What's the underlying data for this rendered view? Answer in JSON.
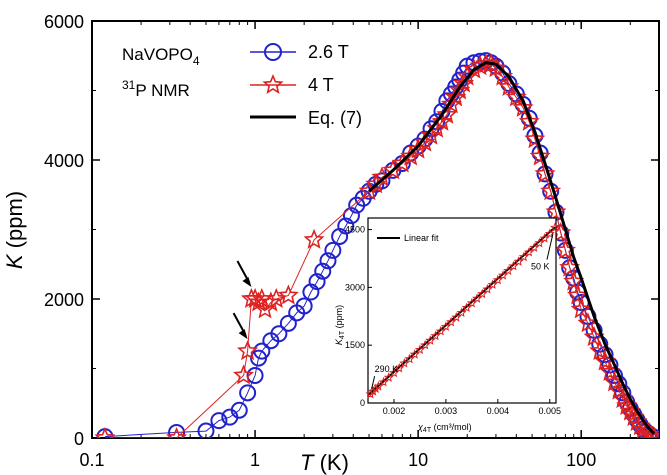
{
  "chart_data": [
    {
      "type": "scatter",
      "xscale": "log",
      "xlim": [
        0.1,
        300
      ],
      "ylim": [
        0,
        6000
      ],
      "xlabel": {
        "italic": "T",
        "unit": " (K)"
      },
      "ylabel": {
        "italic": "K",
        "unit": " (ppm)"
      },
      "x_tick_labels": [
        "0.1",
        "1",
        "10",
        "100"
      ],
      "y_tick_labels": [
        "0",
        "2000",
        "4000",
        "6000"
      ],
      "x_ticks": [
        0.1,
        1,
        10,
        100
      ],
      "y_ticks": [
        0,
        2000,
        4000,
        6000
      ],
      "annotation": {
        "compound_base": "NaVOPO",
        "compound_sub": "4",
        "nmr_sup": "31",
        "nmr_text": "P NMR"
      },
      "legend_position": "top-center",
      "series": [
        {
          "name": "2.6 T",
          "marker": "circle",
          "color": "#2222cc",
          "x": [
            0.12,
            0.33,
            0.5,
            0.6,
            0.7,
            0.8,
            0.9,
            1.0,
            1.05,
            1.1,
            1.25,
            1.4,
            1.6,
            1.8,
            2.0,
            2.2,
            2.4,
            2.6,
            2.8,
            3.0,
            3.3,
            3.6,
            3.9,
            4.2,
            4.6,
            5.0,
            5.5,
            6,
            7,
            8,
            9,
            10,
            11,
            12,
            13,
            14,
            15,
            16,
            17,
            18,
            19,
            20,
            22,
            24,
            26,
            28,
            30,
            33,
            36,
            40,
            44,
            48,
            52,
            56,
            60,
            65,
            70,
            75,
            80,
            85,
            90,
            95,
            100,
            110,
            120,
            130,
            140,
            150,
            160,
            170,
            180,
            190,
            200,
            210,
            220,
            230,
            240,
            250,
            260,
            270,
            280
          ],
          "y": [
            20,
            80,
            100,
            250,
            300,
            400,
            650,
            900,
            1150,
            1250,
            1400,
            1500,
            1650,
            1800,
            1900,
            2100,
            2250,
            2400,
            2550,
            2700,
            2900,
            3050,
            3200,
            3350,
            3450,
            3550,
            3650,
            3700,
            3850,
            3950,
            4100,
            4200,
            4300,
            4450,
            4550,
            4700,
            4850,
            4950,
            5050,
            5150,
            5250,
            5350,
            5400,
            5420,
            5430,
            5400,
            5350,
            5250,
            5100,
            4950,
            4800,
            4600,
            4350,
            4100,
            3800,
            3550,
            3250,
            2950,
            2700,
            2450,
            2300,
            2100,
            1950,
            1750,
            1550,
            1350,
            1200,
            1050,
            900,
            780,
            650,
            520,
            420,
            340,
            260,
            190,
            130,
            90,
            60,
            30,
            10
          ]
        },
        {
          "name": "4 T",
          "marker": "star",
          "color": "#dd2222",
          "x": [
            0.12,
            0.33,
            0.85,
            0.9,
            0.95,
            1.0,
            1.05,
            1.1,
            1.15,
            1.25,
            1.35,
            1.6,
            2.3,
            5.0,
            5.5,
            6,
            7,
            8,
            9,
            10,
            11,
            12,
            13,
            14,
            15,
            16,
            17,
            18,
            19,
            20,
            22,
            24,
            26,
            28,
            30,
            33,
            36,
            40,
            44,
            48,
            52,
            56,
            60,
            65,
            70,
            75,
            80,
            85,
            90,
            95,
            100,
            110,
            120,
            130,
            140,
            150,
            160,
            170,
            180,
            190,
            200,
            210,
            220,
            230,
            240,
            250,
            260,
            270,
            280
          ],
          "y": [
            0,
            0,
            900,
            1250,
            2000,
            2000,
            1950,
            2000,
            1850,
            1950,
            2000,
            2050,
            2850,
            3550,
            3650,
            3750,
            3850,
            3950,
            4050,
            4150,
            4250,
            4350,
            4450,
            4550,
            4650,
            4800,
            4900,
            5000,
            5100,
            5200,
            5300,
            5350,
            5380,
            5380,
            5320,
            5200,
            5050,
            4900,
            4750,
            4550,
            4300,
            4050,
            3800,
            3550,
            3250,
            2950,
            2700,
            2450,
            2250,
            2050,
            1850,
            1650,
            1450,
            1250,
            1100,
            950,
            800,
            680,
            560,
            460,
            380,
            300,
            230,
            170,
            120,
            80,
            50,
            20,
            5
          ]
        },
        {
          "name": "Eq. (7)",
          "marker": "line",
          "color": "#000000",
          "x": [
            5,
            7,
            10,
            14,
            18,
            22,
            26,
            30,
            36,
            44,
            52,
            60,
            70,
            80,
            90,
            100,
            120,
            140,
            160,
            180,
            200,
            220,
            240,
            260,
            280
          ],
          "y": [
            3550,
            3850,
            4200,
            4650,
            5050,
            5300,
            5400,
            5380,
            5200,
            4850,
            4400,
            3950,
            3450,
            3000,
            2600,
            2300,
            1750,
            1350,
            1050,
            780,
            560,
            390,
            250,
            140,
            60
          ]
        }
      ],
      "arrows": [
        {
          "x": 0.9,
          "y": 1250
        },
        {
          "x": 0.95,
          "y": 2000
        }
      ]
    },
    {
      "type": "scatter",
      "xlim": [
        0.0015,
        0.00512
      ],
      "ylim": [
        0,
        4800
      ],
      "xlabel": {
        "symbol": "χ",
        "sub": "4T",
        "unit": " (cm³/mol)"
      },
      "ylabel": {
        "symbol": "K",
        "sub": "4T",
        "unit": " (ppm)"
      },
      "x_tick_labels": [
        "0.002",
        "0.003",
        "0.004",
        "0.005"
      ],
      "y_tick_labels": [
        "0",
        "1500",
        "3000",
        "4500"
      ],
      "x_ticks": [
        0.002,
        0.003,
        0.004,
        0.005
      ],
      "y_ticks": [
        0,
        1500,
        3000,
        4500
      ],
      "legend_position": "top-left",
      "series": [
        {
          "name": "",
          "marker": "star",
          "color": "#dd2222",
          "x": [
            0.00155,
            0.0016,
            0.00165,
            0.0017,
            0.0018,
            0.0019,
            0.002,
            0.0021,
            0.0022,
            0.0023,
            0.0024,
            0.0025,
            0.0026,
            0.0027,
            0.0028,
            0.0029,
            0.003,
            0.0031,
            0.0032,
            0.0033,
            0.0034,
            0.0035,
            0.0036,
            0.0037,
            0.0038,
            0.0039,
            0.004,
            0.0041,
            0.0042,
            0.0043,
            0.0044,
            0.0045,
            0.0046,
            0.0047,
            0.0048,
            0.0049,
            0.005,
            0.0051
          ],
          "y": [
            230,
            300,
            370,
            430,
            540,
            660,
            780,
            900,
            1030,
            1140,
            1260,
            1380,
            1500,
            1620,
            1740,
            1860,
            1980,
            2100,
            2220,
            2340,
            2470,
            2590,
            2710,
            2830,
            2950,
            3070,
            3190,
            3310,
            3430,
            3550,
            3670,
            3790,
            3910,
            4030,
            4150,
            4270,
            4390,
            4550
          ]
        },
        {
          "name": "Linear fit",
          "marker": "line",
          "color": "#000000",
          "x": [
            0.0015,
            0.0051
          ],
          "y": [
            200,
            4560
          ]
        }
      ],
      "annotations": [
        {
          "text": "290 K",
          "x": 0.00155,
          "y": 230
        },
        {
          "text": "50 K",
          "x": 0.0051,
          "y": 4550
        }
      ]
    }
  ]
}
